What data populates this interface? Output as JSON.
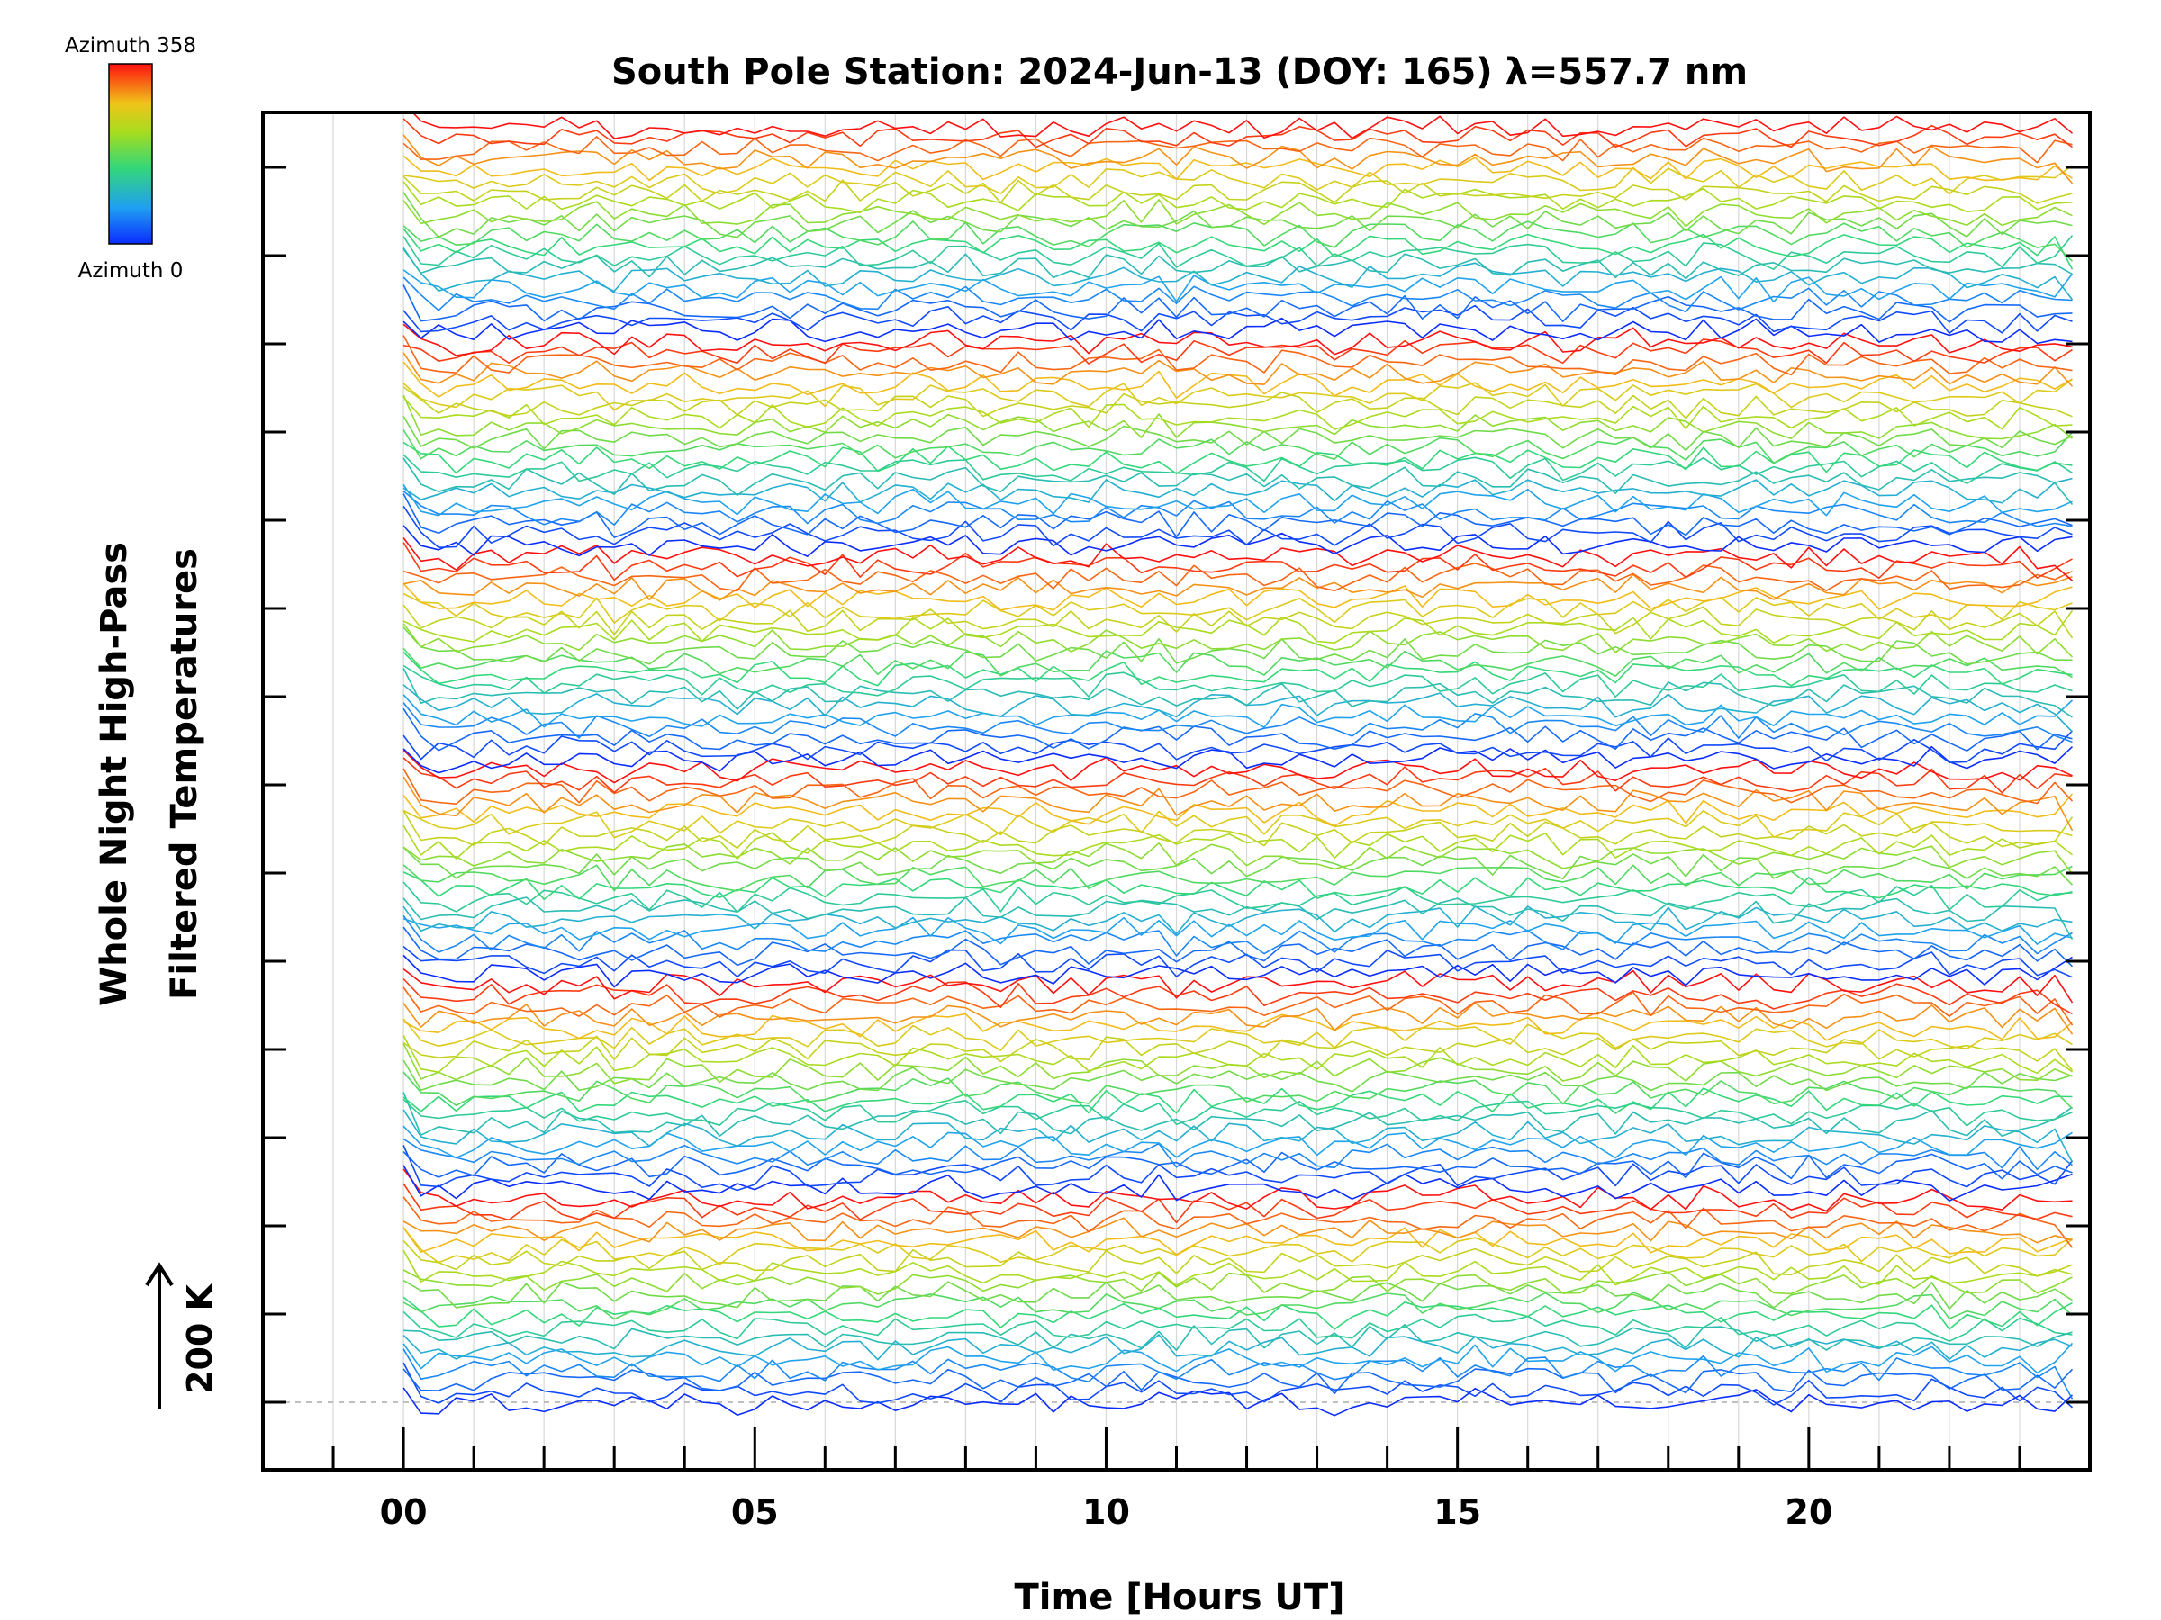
{
  "chart_data": {
    "type": "line",
    "title": "South Pole Station: 2024-Jun-13 (DOY: 165) λ=557.7 nm",
    "xlabel": "Time [Hours UT]",
    "ylabel_line1": "Whole Night High-Pass",
    "ylabel_line2": "Filtered Temperatures",
    "xlim": [
      -2,
      24
    ],
    "x_ticks": [
      0,
      5,
      10,
      15,
      20
    ],
    "x_tick_labels": [
      "00",
      "05",
      "10",
      "15",
      "20"
    ],
    "x_minor_step": 1,
    "x_data_range": [
      0,
      23.75
    ],
    "x_step": 0.25,
    "grid": "vertical, every hour",
    "y_major_ticks": 15,
    "colorbar": {
      "top_label": "Azimuth 358",
      "bottom_label": "Azimuth 0",
      "min": 0,
      "max": 358,
      "colormap": "rainbow (blue to red)"
    },
    "scale_bar": {
      "label": "200 K",
      "direction": "up"
    },
    "series_groups": 6,
    "series_per_group": 20,
    "series_count": 120,
    "colors": {
      "axis": "#000000",
      "grid": "#d8d8d8",
      "baseline": "#aaaaaa"
    }
  }
}
